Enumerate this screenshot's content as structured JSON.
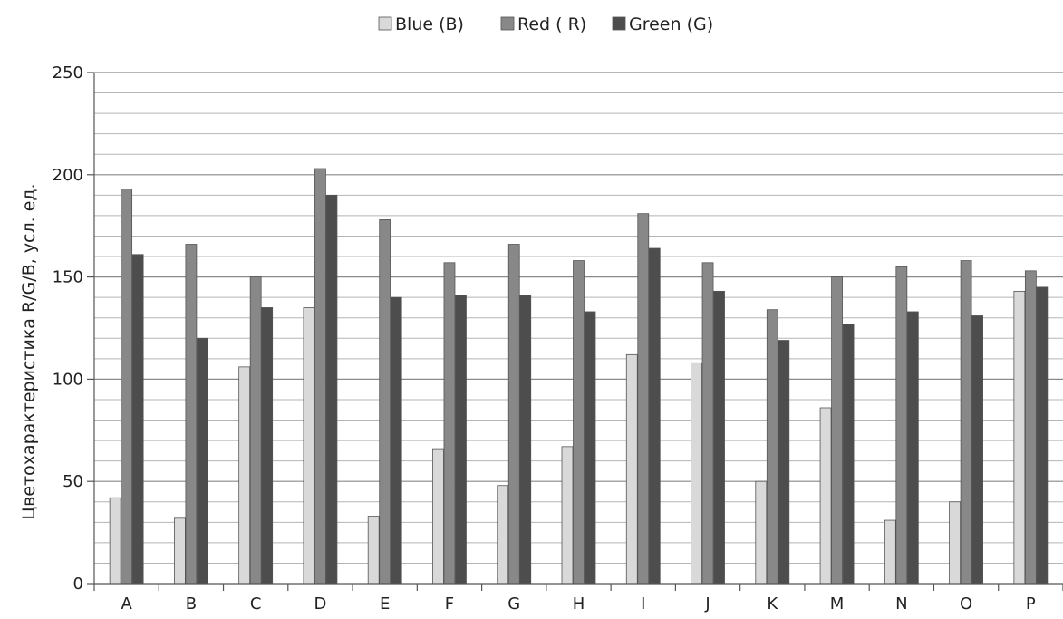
{
  "chart_data": {
    "type": "bar",
    "title": "",
    "xlabel": "",
    "ylabel": "Цветохарактеристика R/G/B, усл. ед.",
    "categories": [
      "A",
      "B",
      "C",
      "D",
      "E",
      "F",
      "G",
      "H",
      "I",
      "J",
      "K",
      "M",
      "N",
      "O",
      "P"
    ],
    "series": [
      {
        "name": "Blue (B)",
        "color": "#d9d9d9",
        "values": [
          42,
          32,
          106,
          135,
          33,
          66,
          48,
          67,
          112,
          108,
          50,
          86,
          31,
          40,
          143
        ]
      },
      {
        "name": "Red ( R)",
        "color": "#888888",
        "values": [
          193,
          166,
          150,
          203,
          178,
          157,
          166,
          158,
          181,
          157,
          134,
          150,
          155,
          158,
          153
        ]
      },
      {
        "name": "Green (G)",
        "color": "#4d4d4d",
        "values": [
          161,
          120,
          135,
          190,
          140,
          141,
          141,
          133,
          164,
          143,
          119,
          127,
          133,
          131,
          145
        ]
      }
    ],
    "ylim": [
      0,
      250
    ],
    "yticks": [
      0,
      50,
      100,
      150,
      200,
      250
    ],
    "minor_step": 10,
    "grid": true,
    "legend_position": "top-center"
  }
}
